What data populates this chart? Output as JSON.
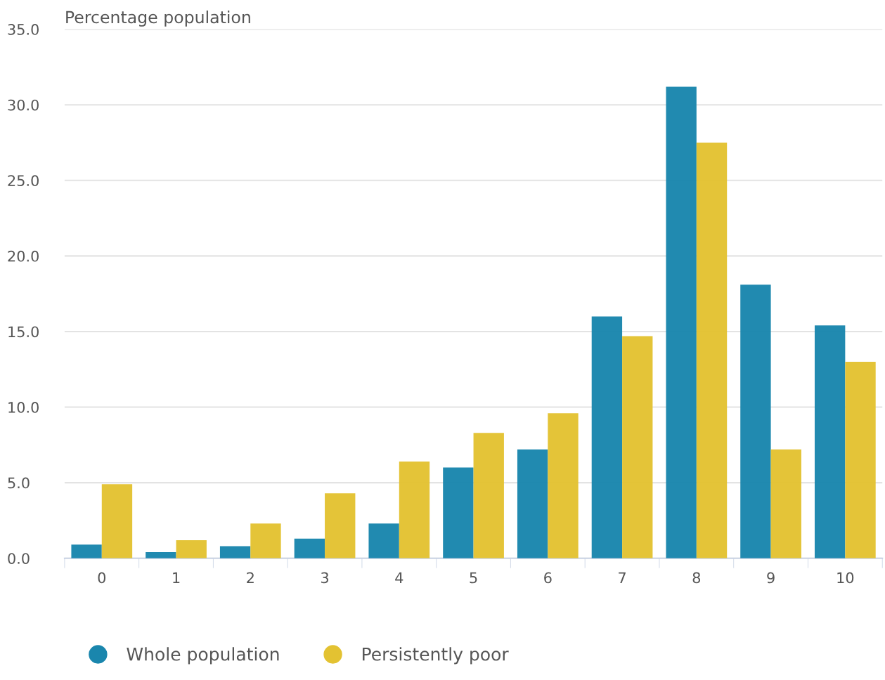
{
  "chart_data": {
    "type": "bar",
    "ylabel": "Percentage population",
    "categories": [
      "0",
      "1",
      "2",
      "3",
      "4",
      "5",
      "6",
      "7",
      "8",
      "9",
      "10"
    ],
    "series": [
      {
        "name": "Whole population",
        "color": "#1a86ad",
        "values": [
          0.9,
          0.4,
          0.8,
          1.3,
          2.3,
          6.0,
          7.2,
          16.0,
          31.2,
          18.1,
          15.4
        ]
      },
      {
        "name": "Persistently poor",
        "color": "#e3c232",
        "values": [
          4.9,
          1.2,
          2.3,
          4.3,
          6.4,
          8.3,
          9.6,
          14.7,
          27.5,
          7.2,
          13.0
        ]
      }
    ],
    "ylim": [
      0,
      35
    ],
    "yticks": [
      {
        "value": 0,
        "label": "0.0"
      },
      {
        "value": 5,
        "label": "5.0"
      },
      {
        "value": 10,
        "label": "10.0"
      },
      {
        "value": 15,
        "label": "15.0"
      },
      {
        "value": 20,
        "label": "20.0"
      },
      {
        "value": 25,
        "label": "25.0"
      },
      {
        "value": 30,
        "label": "30.0"
      },
      {
        "value": 35,
        "label": "35.0"
      }
    ],
    "grid": "y",
    "legend": "bottom left",
    "marker": "circle"
  }
}
